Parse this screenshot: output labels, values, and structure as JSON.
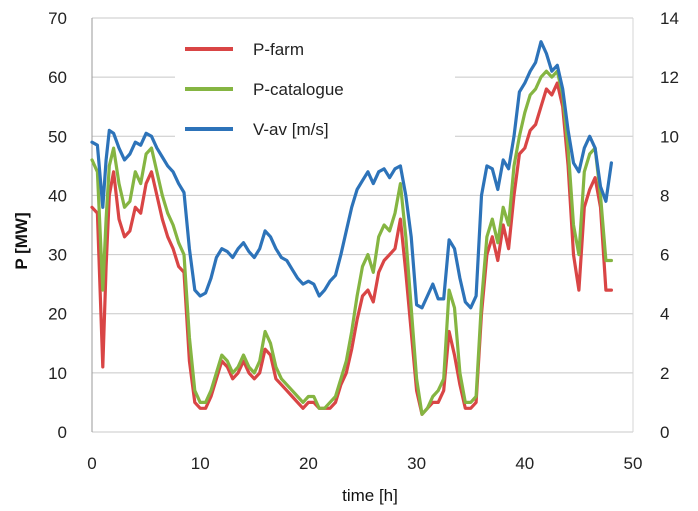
{
  "chart_data": {
    "type": "line",
    "xlabel": "time [h]",
    "ylabel": "P [MW]",
    "xlim": [
      0,
      50
    ],
    "ylim": [
      0,
      70
    ],
    "y2lim": [
      0,
      14
    ],
    "x_ticks": [
      "0",
      "10",
      "20",
      "30",
      "40",
      "50"
    ],
    "y_ticks": [
      "0",
      "10",
      "20",
      "30",
      "40",
      "50",
      "60",
      "70"
    ],
    "y2_ticks": [
      "0",
      "2",
      "4",
      "6",
      "8",
      "10",
      "12",
      "14"
    ],
    "grid": true,
    "legend_position": "top-left",
    "series": [
      {
        "name": "P-farm",
        "axis": "left",
        "color": "#d94545",
        "x": [
          0,
          0.5,
          1,
          1.3,
          1.6,
          2,
          2.5,
          3,
          3.5,
          4,
          4.5,
          5,
          5.5,
          6,
          6.5,
          7,
          7.5,
          8,
          8.5,
          9,
          9.5,
          10,
          10.5,
          11,
          11.5,
          12,
          12.5,
          13,
          13.5,
          14,
          14.5,
          15,
          15.5,
          16,
          16.5,
          17,
          17.5,
          18,
          18.5,
          19,
          19.5,
          20,
          20.5,
          21,
          21.5,
          22,
          22.5,
          23,
          23.5,
          24,
          24.5,
          25,
          25.5,
          26,
          26.5,
          27,
          27.5,
          28,
          28.5,
          29,
          29.5,
          30,
          30.5,
          31,
          31.5,
          32,
          32.5,
          33,
          33.5,
          34,
          34.5,
          35,
          35.5,
          36,
          36.5,
          37,
          37.5,
          38,
          38.5,
          39,
          39.5,
          40,
          40.5,
          41,
          41.5,
          42,
          42.5,
          43,
          43.5,
          44,
          44.5,
          45,
          45.5,
          46,
          46.5,
          47,
          47.5,
          48
        ],
        "values": [
          38,
          37,
          11,
          28,
          40,
          44,
          36,
          33,
          34,
          38,
          37,
          42,
          44,
          40,
          36,
          33,
          31,
          28,
          27,
          12,
          5,
          4,
          4,
          6,
          9,
          12,
          11,
          9,
          10,
          12,
          10,
          9,
          10,
          14,
          13,
          9,
          8,
          7,
          6,
          5,
          4,
          5,
          5,
          4,
          4,
          4,
          5,
          8,
          10,
          14,
          19,
          23,
          24,
          22,
          27,
          29,
          30,
          31,
          36,
          27,
          17,
          7,
          3,
          4,
          5,
          5,
          7,
          17,
          13,
          8,
          4,
          4,
          5,
          20,
          30,
          33,
          29,
          35,
          31,
          40,
          47,
          48,
          51,
          52,
          55,
          58,
          57,
          59,
          55,
          45,
          30,
          24,
          38,
          41,
          43,
          38,
          24,
          24
        ]
      },
      {
        "name": "P-catalogue",
        "axis": "left",
        "color": "#85b542",
        "x": [
          0,
          0.5,
          1,
          1.3,
          1.6,
          2,
          2.5,
          3,
          3.5,
          4,
          4.5,
          5,
          5.5,
          6,
          6.5,
          7,
          7.5,
          8,
          8.5,
          9,
          9.5,
          10,
          10.5,
          11,
          11.5,
          12,
          12.5,
          13,
          13.5,
          14,
          14.5,
          15,
          15.5,
          16,
          16.5,
          17,
          17.5,
          18,
          18.5,
          19,
          19.5,
          20,
          20.5,
          21,
          21.5,
          22,
          22.5,
          23,
          23.5,
          24,
          24.5,
          25,
          25.5,
          26,
          26.5,
          27,
          27.5,
          28,
          28.5,
          29,
          29.5,
          30,
          30.5,
          31,
          31.5,
          32,
          32.5,
          33,
          33.5,
          34,
          34.5,
          35,
          35.5,
          36,
          36.5,
          37,
          37.5,
          38,
          38.5,
          39,
          39.5,
          40,
          40.5,
          41,
          41.5,
          42,
          42.5,
          43,
          43.5,
          44,
          44.5,
          45,
          45.5,
          46,
          46.5,
          47,
          47.5,
          48
        ],
        "values": [
          46,
          44,
          24,
          36,
          45,
          48,
          42,
          38,
          39,
          44,
          42,
          47,
          48,
          44,
          40,
          37,
          35,
          32,
          30,
          16,
          7,
          5,
          5,
          7,
          10,
          13,
          12,
          10,
          11,
          13,
          11,
          10,
          12,
          17,
          15,
          11,
          9,
          8,
          7,
          6,
          5,
          6,
          6,
          4,
          4,
          5,
          6,
          9,
          12,
          17,
          23,
          28,
          30,
          27,
          33,
          35,
          34,
          37,
          42,
          33,
          21,
          9,
          3,
          4,
          6,
          7,
          9,
          24,
          21,
          10,
          5,
          5,
          6,
          22,
          33,
          36,
          32,
          38,
          35,
          45,
          50,
          54,
          57,
          58,
          60,
          61,
          60,
          61,
          57,
          48,
          35,
          30,
          44,
          47,
          48,
          40,
          29,
          29
        ]
      },
      {
        "name": "V-av [m/s]",
        "axis": "right",
        "color": "#2d73b9",
        "x": [
          0,
          0.5,
          1,
          1.3,
          1.6,
          2,
          2.5,
          3,
          3.5,
          4,
          4.5,
          5,
          5.5,
          6,
          6.5,
          7,
          7.5,
          8,
          8.5,
          9,
          9.5,
          10,
          10.5,
          11,
          11.5,
          12,
          12.5,
          13,
          13.5,
          14,
          14.5,
          15,
          15.5,
          16,
          16.5,
          17,
          17.5,
          18,
          18.5,
          19,
          19.5,
          20,
          20.5,
          21,
          21.5,
          22,
          22.5,
          23,
          23.5,
          24,
          24.5,
          25,
          25.5,
          26,
          26.5,
          27,
          27.5,
          28,
          28.5,
          29,
          29.5,
          30,
          30.5,
          31,
          31.5,
          32,
          32.5,
          33,
          33.5,
          34,
          34.5,
          35,
          35.5,
          36,
          36.5,
          37,
          37.5,
          38,
          38.5,
          39,
          39.5,
          40,
          40.5,
          41,
          41.5,
          42,
          42.5,
          43,
          43.5,
          44,
          44.5,
          45,
          45.5,
          46,
          46.5,
          47,
          47.5,
          48
        ],
        "values": [
          9.8,
          9.7,
          7.6,
          9.2,
          10.2,
          10.1,
          9.6,
          9.2,
          9.4,
          9.8,
          9.7,
          10.1,
          10,
          9.6,
          9.3,
          9,
          8.8,
          8.4,
          8.1,
          6.2,
          4.8,
          4.6,
          4.7,
          5.2,
          5.9,
          6.2,
          6.1,
          5.9,
          6.2,
          6.4,
          6.1,
          5.9,
          6.2,
          6.8,
          6.6,
          6.2,
          5.9,
          5.8,
          5.5,
          5.2,
          5,
          5.1,
          5,
          4.6,
          4.8,
          5.1,
          5.3,
          6,
          6.8,
          7.6,
          8.2,
          8.5,
          8.8,
          8.4,
          8.8,
          8.9,
          8.6,
          8.9,
          9,
          8,
          6.6,
          4.3,
          4.2,
          4.6,
          5,
          4.5,
          4.5,
          6.5,
          6.2,
          5.2,
          4.4,
          4.2,
          4.6,
          8,
          9,
          8.9,
          8.2,
          9.2,
          8.9,
          10,
          11.5,
          11.8,
          12.2,
          12.5,
          13.2,
          12.8,
          12.2,
          12.4,
          11.6,
          10.2,
          9.1,
          8.8,
          9.6,
          10,
          9.6,
          8.3,
          7.8,
          9.1
        ]
      }
    ]
  }
}
